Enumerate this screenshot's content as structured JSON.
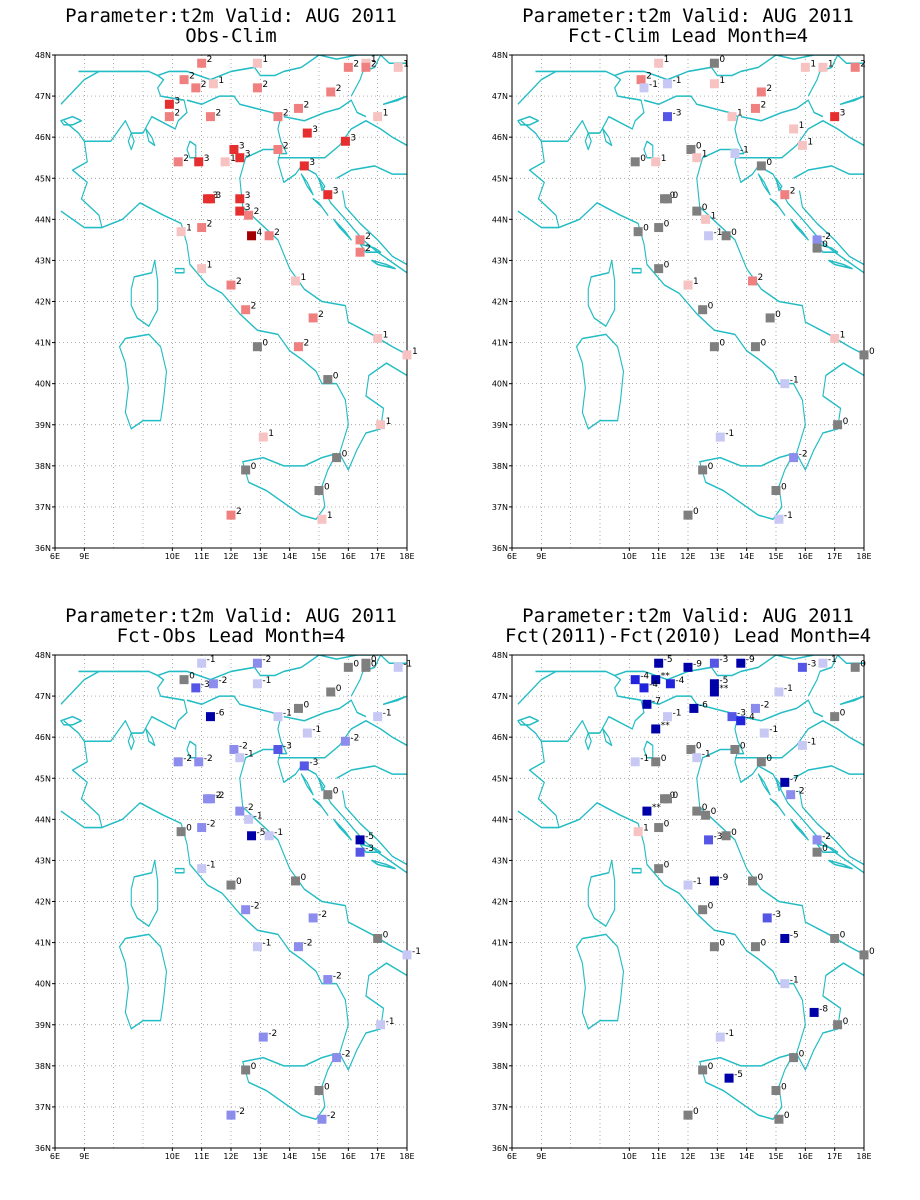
{
  "colors": {
    "coast": "#22bcc4",
    "zero": "#7f7f7f",
    "pos": {
      "1": "#f6c2c2",
      "2": "#f08080",
      "3": "#e62e2e",
      "4": "#a30000"
    },
    "neg": {
      "1": "#c8c8f5",
      "2": "#8c8ced",
      "3": "#5555e6",
      "4": "#2222dd",
      "5": "#0000a8"
    }
  },
  "chart_data": [
    {
      "type": "map",
      "title": "Parameter:t2m Valid: AUG 2011",
      "subtitle": "Obs-Clim",
      "xlim": [
        6,
        18
      ],
      "ylim": [
        36,
        48
      ],
      "xticks": [
        "6E",
        "9E",
        "10E",
        "11E",
        "12E",
        "13E",
        "14E",
        "15E",
        "16E",
        "17E",
        "18E"
      ],
      "yticks": [
        "36N",
        "37N",
        "38N",
        "39N",
        "40N",
        "41N",
        "42N",
        "43N",
        "44N",
        "45N",
        "46N",
        "47N",
        "48N"
      ],
      "stations": [
        [
          10.4,
          47.4,
          "2"
        ],
        [
          10.8,
          47.2,
          "2"
        ],
        [
          11.4,
          47.3,
          "1"
        ],
        [
          11.0,
          47.8,
          "2"
        ],
        [
          12.9,
          47.8,
          "1"
        ],
        [
          12.9,
          47.2,
          "2"
        ],
        [
          16.0,
          47.7,
          "2"
        ],
        [
          16.6,
          47.8,
          "1"
        ],
        [
          16.6,
          47.7,
          "2"
        ],
        [
          17.7,
          47.7,
          "1"
        ],
        [
          9.9,
          46.8,
          "3"
        ],
        [
          9.9,
          46.5,
          "2"
        ],
        [
          11.3,
          46.5,
          "2"
        ],
        [
          13.6,
          46.5,
          "2"
        ],
        [
          14.3,
          46.7,
          "2"
        ],
        [
          15.4,
          47.1,
          "2"
        ],
        [
          17.0,
          46.5,
          "1"
        ],
        [
          14.6,
          46.1,
          "3"
        ],
        [
          15.9,
          45.9,
          "3"
        ],
        [
          12.1,
          45.7,
          "3"
        ],
        [
          12.3,
          45.5,
          "3"
        ],
        [
          10.2,
          45.4,
          "2"
        ],
        [
          10.9,
          45.4,
          "3"
        ],
        [
          13.6,
          45.7,
          "2"
        ],
        [
          14.5,
          45.3,
          "3"
        ],
        [
          11.8,
          45.4,
          "1"
        ],
        [
          11.2,
          44.5,
          "3"
        ],
        [
          11.3,
          44.5,
          "3"
        ],
        [
          12.3,
          44.5,
          "3"
        ],
        [
          12.3,
          44.2,
          "3"
        ],
        [
          12.6,
          44.1,
          "2"
        ],
        [
          15.3,
          44.6,
          "3"
        ],
        [
          11.0,
          43.8,
          "2"
        ],
        [
          10.3,
          43.7,
          "1"
        ],
        [
          13.3,
          43.6,
          "2"
        ],
        [
          12.7,
          43.6,
          "4"
        ],
        [
          16.4,
          43.5,
          "2"
        ],
        [
          16.4,
          43.2,
          "2"
        ],
        [
          11.0,
          42.8,
          "1"
        ],
        [
          12.0,
          42.4,
          "2"
        ],
        [
          14.2,
          42.5,
          "1"
        ],
        [
          12.5,
          41.8,
          "2"
        ],
        [
          14.8,
          41.6,
          "2"
        ],
        [
          17.0,
          41.1,
          "1"
        ],
        [
          12.9,
          40.9,
          "0"
        ],
        [
          14.3,
          40.9,
          "2"
        ],
        [
          18.0,
          40.7,
          "1"
        ],
        [
          15.3,
          40.1,
          "0"
        ],
        [
          13.1,
          38.7,
          "1"
        ],
        [
          17.1,
          39.0,
          "1"
        ],
        [
          15.6,
          38.2,
          "0"
        ],
        [
          12.5,
          37.9,
          "0"
        ],
        [
          15.0,
          37.4,
          "0"
        ],
        [
          15.1,
          36.7,
          "1"
        ],
        [
          12.0,
          36.8,
          "2"
        ]
      ]
    },
    {
      "type": "map",
      "title": "Parameter:t2m Valid: AUG 2011",
      "subtitle": "Fct-Clim Lead Month=4",
      "xlim": [
        6,
        18
      ],
      "ylim": [
        36,
        48
      ],
      "xticks": [
        "6E",
        "9E",
        "10E",
        "11E",
        "12E",
        "13E",
        "14E",
        "15E",
        "16E",
        "17E",
        "18E"
      ],
      "yticks": [
        "36N",
        "37N",
        "38N",
        "39N",
        "40N",
        "41N",
        "42N",
        "43N",
        "44N",
        "45N",
        "46N",
        "47N",
        "48N"
      ],
      "stations": [
        [
          10.4,
          47.4,
          "2"
        ],
        [
          10.5,
          47.2,
          "-1"
        ],
        [
          11.3,
          47.3,
          "-1"
        ],
        [
          11.0,
          47.8,
          "1"
        ],
        [
          12.9,
          47.8,
          "0"
        ],
        [
          12.9,
          47.3,
          "1"
        ],
        [
          14.5,
          47.1,
          "2"
        ],
        [
          16.0,
          47.7,
          "1"
        ],
        [
          16.6,
          47.7,
          "1"
        ],
        [
          17.7,
          47.7,
          "2"
        ],
        [
          11.3,
          46.5,
          "-3"
        ],
        [
          13.5,
          46.5,
          "1"
        ],
        [
          14.3,
          46.7,
          "2"
        ],
        [
          15.6,
          46.2,
          "1"
        ],
        [
          17.0,
          46.5,
          "3"
        ],
        [
          15.9,
          45.8,
          "1"
        ],
        [
          10.2,
          45.4,
          "0"
        ],
        [
          10.9,
          45.4,
          "1"
        ],
        [
          12.1,
          45.7,
          "0"
        ],
        [
          12.3,
          45.5,
          "1"
        ],
        [
          13.6,
          45.6,
          "-1"
        ],
        [
          14.5,
          45.3,
          "0"
        ],
        [
          15.3,
          44.6,
          "2"
        ],
        [
          11.2,
          44.5,
          "0"
        ],
        [
          11.3,
          44.5,
          "0"
        ],
        [
          12.3,
          44.2,
          "0"
        ],
        [
          12.6,
          44.0,
          "1"
        ],
        [
          11.0,
          43.8,
          "0"
        ],
        [
          10.3,
          43.7,
          "0"
        ],
        [
          12.7,
          43.6,
          "-1"
        ],
        [
          13.3,
          43.6,
          "0"
        ],
        [
          16.4,
          43.5,
          "-2"
        ],
        [
          16.4,
          43.3,
          "0"
        ],
        [
          11.0,
          42.8,
          "0"
        ],
        [
          12.0,
          42.4,
          "1"
        ],
        [
          14.2,
          42.5,
          "2"
        ],
        [
          12.5,
          41.8,
          "0"
        ],
        [
          14.8,
          41.6,
          "0"
        ],
        [
          17.0,
          41.1,
          "1"
        ],
        [
          12.9,
          40.9,
          "0"
        ],
        [
          14.3,
          40.9,
          "0"
        ],
        [
          18.0,
          40.7,
          "0"
        ],
        [
          15.3,
          40.0,
          "-1"
        ],
        [
          13.1,
          38.7,
          "-1"
        ],
        [
          17.1,
          39.0,
          "0"
        ],
        [
          15.6,
          38.2,
          "-2"
        ],
        [
          12.5,
          37.9,
          "0"
        ],
        [
          15.0,
          37.4,
          "0"
        ],
        [
          15.1,
          36.7,
          "-1"
        ],
        [
          12.0,
          36.8,
          "0"
        ]
      ]
    },
    {
      "type": "map",
      "title": "Parameter:t2m Valid: AUG 2011",
      "subtitle": "Fct-Obs Lead Month=4",
      "xlim": [
        6,
        18
      ],
      "ylim": [
        36,
        48
      ],
      "xticks": [
        "6E",
        "9E",
        "10E",
        "11E",
        "12E",
        "13E",
        "14E",
        "15E",
        "16E",
        "17E",
        "18E"
      ],
      "yticks": [
        "36N",
        "37N",
        "38N",
        "39N",
        "40N",
        "41N",
        "42N",
        "43N",
        "44N",
        "45N",
        "46N",
        "47N",
        "48N"
      ],
      "stations": [
        [
          10.4,
          47.4,
          "0"
        ],
        [
          10.8,
          47.2,
          "-3"
        ],
        [
          11.4,
          47.3,
          "-2"
        ],
        [
          11.0,
          47.8,
          "-1"
        ],
        [
          12.9,
          47.8,
          "-2"
        ],
        [
          12.9,
          47.3,
          "-1"
        ],
        [
          16.0,
          47.7,
          "0"
        ],
        [
          16.6,
          47.8,
          "0"
        ],
        [
          16.6,
          47.7,
          "0"
        ],
        [
          17.7,
          47.7,
          "-1"
        ],
        [
          11.3,
          46.5,
          "-6"
        ],
        [
          13.6,
          46.5,
          "-1"
        ],
        [
          14.3,
          46.7,
          "0"
        ],
        [
          15.4,
          47.1,
          "0"
        ],
        [
          17.0,
          46.5,
          "-1"
        ],
        [
          14.6,
          46.1,
          "-1"
        ],
        [
          15.9,
          45.9,
          "-2"
        ],
        [
          10.2,
          45.4,
          "-2"
        ],
        [
          10.9,
          45.4,
          "-2"
        ],
        [
          12.1,
          45.7,
          "-2"
        ],
        [
          12.3,
          45.5,
          "-1"
        ],
        [
          13.6,
          45.7,
          "-3"
        ],
        [
          14.5,
          45.3,
          "-3"
        ],
        [
          15.3,
          44.6,
          "0"
        ],
        [
          11.2,
          44.5,
          "-2"
        ],
        [
          11.3,
          44.5,
          "-2"
        ],
        [
          12.3,
          44.2,
          "-2"
        ],
        [
          12.6,
          44.0,
          "-1"
        ],
        [
          11.0,
          43.8,
          "-2"
        ],
        [
          10.3,
          43.7,
          "0"
        ],
        [
          12.7,
          43.6,
          "-5"
        ],
        [
          13.3,
          43.6,
          "-1"
        ],
        [
          16.4,
          43.5,
          "-5"
        ],
        [
          16.4,
          43.2,
          "-3"
        ],
        [
          11.0,
          42.8,
          "-1"
        ],
        [
          12.0,
          42.4,
          "0"
        ],
        [
          14.2,
          42.5,
          "0"
        ],
        [
          12.5,
          41.8,
          "-2"
        ],
        [
          14.8,
          41.6,
          "-2"
        ],
        [
          17.0,
          41.1,
          "0"
        ],
        [
          12.9,
          40.9,
          "-1"
        ],
        [
          14.3,
          40.9,
          "-2"
        ],
        [
          18.0,
          40.7,
          "-1"
        ],
        [
          15.3,
          40.1,
          "-2"
        ],
        [
          13.1,
          38.7,
          "-2"
        ],
        [
          17.1,
          39.0,
          "-1"
        ],
        [
          15.6,
          38.2,
          "-2"
        ],
        [
          12.5,
          37.9,
          "0"
        ],
        [
          15.0,
          37.4,
          "0"
        ],
        [
          15.1,
          36.7,
          "-2"
        ],
        [
          12.0,
          36.8,
          "-2"
        ]
      ]
    },
    {
      "type": "map",
      "title": "Parameter:t2m Valid: AUG 2011",
      "subtitle": "Fct(2011)-Fct(2010) Lead Month=4",
      "xlim": [
        6,
        18
      ],
      "ylim": [
        36,
        48
      ],
      "xticks": [
        "6E",
        "9E",
        "10E",
        "11E",
        "12E",
        "13E",
        "14E",
        "15E",
        "16E",
        "17E",
        "18E"
      ],
      "yticks": [
        "36N",
        "37N",
        "38N",
        "39N",
        "40N",
        "41N",
        "42N",
        "43N",
        "44N",
        "45N",
        "46N",
        "47N",
        "48N"
      ],
      "stations": [
        [
          11.0,
          47.8,
          "-5"
        ],
        [
          12.0,
          47.7,
          "-9"
        ],
        [
          12.9,
          47.8,
          "-3"
        ],
        [
          13.8,
          47.8,
          "-9"
        ],
        [
          15.9,
          47.7,
          "-3"
        ],
        [
          16.6,
          47.8,
          "-1"
        ],
        [
          17.7,
          47.7,
          "0"
        ],
        [
          10.2,
          47.4,
          "-4"
        ],
        [
          10.9,
          47.4,
          "**"
        ],
        [
          11.4,
          47.3,
          "-4"
        ],
        [
          10.5,
          47.2,
          "-4"
        ],
        [
          12.9,
          47.3,
          "-5"
        ],
        [
          12.9,
          47.1,
          "**"
        ],
        [
          15.1,
          47.1,
          "-1"
        ],
        [
          10.6,
          46.8,
          "-7"
        ],
        [
          12.2,
          46.7,
          "-6"
        ],
        [
          14.3,
          46.7,
          "-2"
        ],
        [
          13.5,
          46.5,
          "-3"
        ],
        [
          13.8,
          46.4,
          "-4"
        ],
        [
          11.3,
          46.5,
          "-1"
        ],
        [
          10.9,
          46.2,
          "**"
        ],
        [
          17.0,
          46.5,
          "0"
        ],
        [
          14.6,
          46.1,
          "-1"
        ],
        [
          15.9,
          45.8,
          "-1"
        ],
        [
          10.2,
          45.4,
          "-1"
        ],
        [
          10.9,
          45.4,
          "0"
        ],
        [
          12.1,
          45.7,
          "0"
        ],
        [
          12.3,
          45.5,
          "-1"
        ],
        [
          13.6,
          45.7,
          "0"
        ],
        [
          14.5,
          45.4,
          "0"
        ],
        [
          15.3,
          44.9,
          "-7"
        ],
        [
          15.5,
          44.6,
          "-2"
        ],
        [
          11.2,
          44.5,
          "0"
        ],
        [
          11.3,
          44.5,
          "0"
        ],
        [
          10.6,
          44.2,
          "**"
        ],
        [
          12.3,
          44.2,
          "0"
        ],
        [
          12.6,
          44.1,
          "0"
        ],
        [
          11.0,
          43.8,
          "0"
        ],
        [
          10.3,
          43.7,
          "1"
        ],
        [
          12.7,
          43.5,
          "-3"
        ],
        [
          13.3,
          43.6,
          "0"
        ],
        [
          16.4,
          43.5,
          "-2"
        ],
        [
          16.4,
          43.2,
          "0"
        ],
        [
          11.0,
          42.8,
          "0"
        ],
        [
          12.0,
          42.4,
          "-1"
        ],
        [
          12.9,
          42.5,
          "-9"
        ],
        [
          14.2,
          42.5,
          "0"
        ],
        [
          12.5,
          41.8,
          "0"
        ],
        [
          14.7,
          41.6,
          "-3"
        ],
        [
          15.3,
          41.1,
          "-5"
        ],
        [
          17.0,
          41.1,
          "0"
        ],
        [
          12.9,
          40.9,
          "0"
        ],
        [
          14.3,
          40.9,
          "0"
        ],
        [
          18.0,
          40.7,
          "0"
        ],
        [
          15.3,
          40.0,
          "-1"
        ],
        [
          16.3,
          39.3,
          "-8"
        ],
        [
          17.1,
          39.0,
          "0"
        ],
        [
          13.1,
          38.7,
          "-1"
        ],
        [
          15.6,
          38.2,
          "0"
        ],
        [
          12.5,
          37.9,
          "0"
        ],
        [
          13.4,
          37.7,
          "-5"
        ],
        [
          15.0,
          37.4,
          "0"
        ],
        [
          15.1,
          36.7,
          "0"
        ],
        [
          12.0,
          36.8,
          "0"
        ]
      ]
    }
  ]
}
